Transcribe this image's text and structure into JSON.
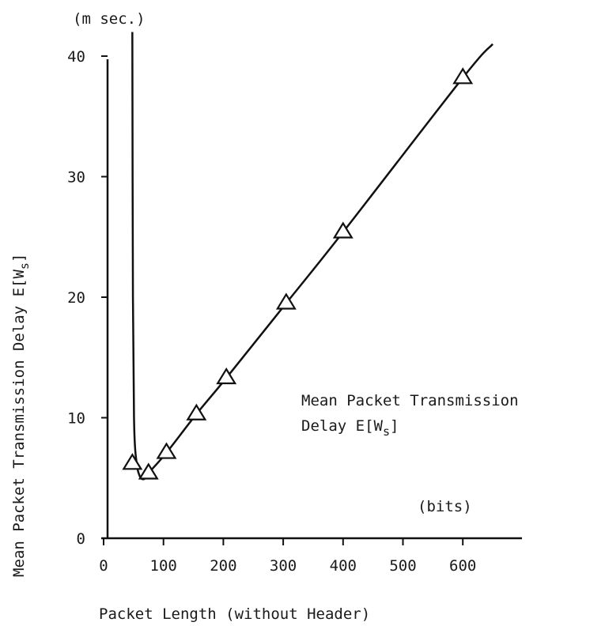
{
  "chart_data": {
    "type": "line",
    "xlabel": "Packet Length (without Header)",
    "ylabel": "Mean Packet Transmission Delay E[W",
    "ylabel_sub": "s",
    "ylabel_close": "]",
    "x_unit": "(bits)",
    "y_unit": "(m sec.)",
    "annotation_line1": "Mean Packet Transmission",
    "annotation_line2": "Delay E[W",
    "annotation_sub": "s",
    "annotation_close": "]",
    "xlim": [
      0,
      700
    ],
    "ylim": [
      0,
      40
    ],
    "x_ticks": [
      0,
      100,
      200,
      300,
      400,
      500,
      600
    ],
    "y_ticks": [
      0,
      10,
      20,
      30,
      40
    ],
    "grid": false,
    "series": [
      {
        "marker": "triangle",
        "x": [
          48,
          75,
          105,
          155,
          205,
          305,
          400,
          600
        ],
        "y": [
          6.2,
          5.4,
          7.1,
          10.3,
          13.3,
          19.5,
          25.4,
          38.2
        ]
      }
    ],
    "curve": {
      "x": [
        48,
        49,
        51,
        55,
        60,
        65,
        70,
        75,
        105,
        155,
        205,
        305,
        400,
        600,
        650
      ],
      "y": [
        42,
        20,
        9.5,
        6.3,
        5.2,
        4.9,
        5.0,
        5.4,
        7.1,
        10.3,
        13.3,
        19.5,
        25.4,
        38.2,
        41.0
      ]
    }
  }
}
